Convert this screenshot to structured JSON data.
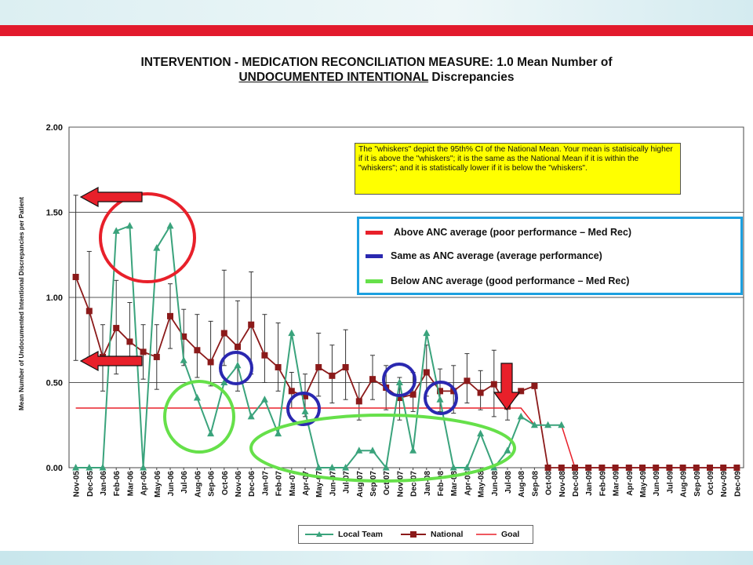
{
  "title": {
    "line1": "INTERVENTION - MEDICATION RECONCILIATION MEASURE: 1.0 Mean Number of",
    "line2_underlined": "UNDOCUMENTED INTENTIONAL",
    "line2_rest": " Discrepancies"
  },
  "note": "The \"whiskers\" depict the 95th% CI of the National Mean. Your mean is statisically higher if it is above the \"whiskers\"; it is the same as the National Mean if it is within the \"whiskers\"; and it is statistically lower if it is below the \"whiskers\".",
  "performance_legend": [
    {
      "label": "Above ANC average (poor performance – Med Rec)",
      "color": "#e8202a"
    },
    {
      "label": "Same as ANC average (average performance)",
      "color": "#2a28b0"
    },
    {
      "label": "Below ANC average (good performance – Med Rec)",
      "color": "#66e04a"
    }
  ],
  "colors": {
    "local": "#3aa37c",
    "national": "#8b1a1a",
    "goal": "#e8202a",
    "red_circle": "#e8202a",
    "blue_circle": "#2a28b0",
    "green_circle": "#66e04a",
    "arrow": "#e8202a"
  },
  "chart_data": {
    "type": "line",
    "ylabel": "Mean Number of Undocumented Intentional Discrepancies per Patient",
    "xlabel": "",
    "ylim": [
      0,
      2
    ],
    "yticks": [
      "0.00",
      "0.50",
      "1.00",
      "1.50",
      "2.00"
    ],
    "grid": true,
    "legend_position": "bottom",
    "categories": [
      "Nov-05",
      "Dec-05",
      "Jan-06",
      "Feb-06",
      "Mar-06",
      "Apr-06",
      "May-06",
      "Jun-06",
      "Jul-06",
      "Aug-06",
      "Sep-06",
      "Oct-06",
      "Nov-06",
      "Dec-06",
      "Jan-07",
      "Feb-07",
      "Mar-07",
      "Apr-07",
      "May-07",
      "Jun-07",
      "Jul-07",
      "Aug-07",
      "Sep-07",
      "Oct-07",
      "Nov-07",
      "Dec-07",
      "Jan-08",
      "Feb-08",
      "Mar-08",
      "Apr-08",
      "May-08",
      "Jun-08",
      "Jul-08",
      "Aug-08",
      "Sep-08",
      "Oct-08",
      "Nov-08",
      "Dec-08",
      "Jan-09",
      "Feb-09",
      "Mar-09",
      "Apr-09",
      "May-09",
      "Jun-09",
      "Jul-09",
      "Aug-09",
      "Sep-09",
      "Oct-09",
      "Nov-09",
      "Dec-09"
    ],
    "series": [
      {
        "name": "Local Team",
        "values": [
          0,
          0,
          0,
          1.39,
          1.42,
          0,
          1.29,
          1.42,
          0.63,
          0.41,
          0.2,
          0.5,
          0.6,
          0.3,
          0.4,
          0.2,
          0.79,
          0.33,
          0,
          0,
          0,
          0.1,
          0.1,
          0,
          0.5,
          0.1,
          0.79,
          0.4,
          0,
          0,
          0.2,
          0,
          0.1,
          0.3,
          0.25,
          0.25,
          0.25,
          null,
          null,
          null,
          null,
          null,
          null,
          null,
          null,
          null,
          null,
          null,
          null,
          null
        ]
      },
      {
        "name": "National",
        "values": [
          1.12,
          0.92,
          0.65,
          0.82,
          0.74,
          0.68,
          0.65,
          0.89,
          0.77,
          0.69,
          0.62,
          0.79,
          0.71,
          0.84,
          0.66,
          0.59,
          0.45,
          0.42,
          0.59,
          0.54,
          0.59,
          0.39,
          0.52,
          0.47,
          0.41,
          0.43,
          0.56,
          0.45,
          0.45,
          0.51,
          0.44,
          0.49,
          0.36,
          0.45,
          0.48,
          0,
          0,
          0,
          0,
          0,
          0,
          0,
          0,
          0,
          0,
          0,
          0,
          0,
          0,
          0
        ]
      },
      {
        "name": "Goal",
        "values": [
          0.35,
          0.35,
          0.35,
          0.35,
          0.35,
          0.35,
          0.35,
          0.35,
          0.35,
          0.35,
          0.35,
          0.35,
          0.35,
          0.35,
          0.35,
          0.35,
          0.35,
          0.35,
          0.35,
          0.35,
          0.35,
          0.35,
          0.35,
          0.35,
          0.35,
          0.35,
          0.35,
          0.35,
          0.35,
          0.35,
          0.35,
          0.35,
          0.35,
          0.35,
          0.25,
          0.25,
          0.25,
          0,
          0,
          0,
          0,
          0,
          0,
          0,
          0,
          0,
          0,
          0,
          0,
          0
        ]
      }
    ],
    "national_ci": [
      [
        0.63,
        1.6
      ],
      [
        0.65,
        1.27
      ],
      [
        0.45,
        0.84
      ],
      [
        0.55,
        1.1
      ],
      [
        0.6,
        0.97
      ],
      [
        0.52,
        0.84
      ],
      [
        0.46,
        0.84
      ],
      [
        0.7,
        1.08
      ],
      [
        0.6,
        0.93
      ],
      [
        0.53,
        0.9
      ],
      [
        0.48,
        0.86
      ],
      [
        0.6,
        1.16
      ],
      [
        0.45,
        0.98
      ],
      [
        0.55,
        1.15
      ],
      [
        0.5,
        0.9
      ],
      [
        0.45,
        0.85
      ],
      [
        0.35,
        0.56
      ],
      [
        0.3,
        0.55
      ],
      [
        0.42,
        0.79
      ],
      [
        0.38,
        0.72
      ],
      [
        0.4,
        0.81
      ],
      [
        0.28,
        0.5
      ],
      [
        0.4,
        0.66
      ],
      [
        0.34,
        0.6
      ],
      [
        0.28,
        0.53
      ],
      [
        0.33,
        0.56
      ],
      [
        0.42,
        0.72
      ],
      [
        0.33,
        0.58
      ],
      [
        0.32,
        0.6
      ],
      [
        0.38,
        0.67
      ],
      [
        0.34,
        0.57
      ],
      [
        0.3,
        0.69
      ],
      [
        0.28,
        0.46
      ],
      null,
      null,
      null,
      null,
      null,
      null,
      null,
      null,
      null,
      null,
      null,
      null,
      null,
      null,
      null,
      null,
      null
    ]
  }
}
